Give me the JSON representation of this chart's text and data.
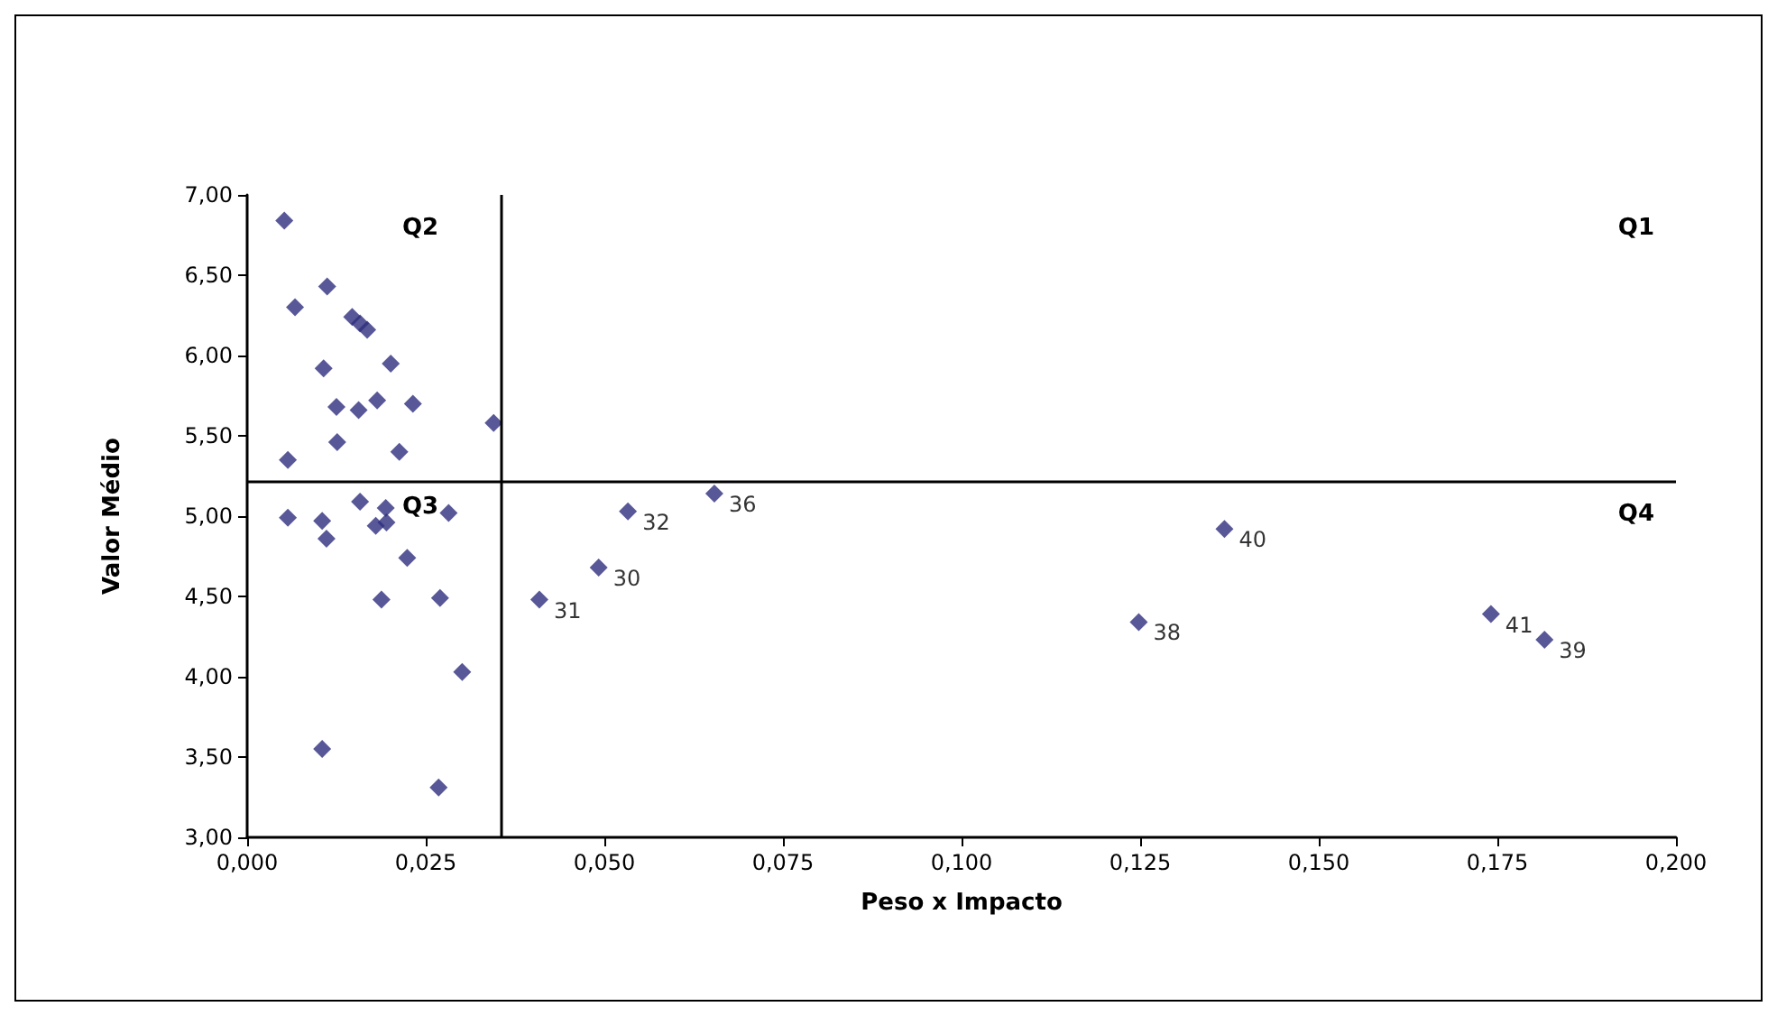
{
  "chart_data": {
    "type": "scatter",
    "xlabel": "Peso x Impacto",
    "ylabel": "Valor Médio",
    "color": "#2e2e7e",
    "marker": "diamond",
    "grid": false,
    "x": [
      0.0052,
      0.0067,
      0.0112,
      0.0147,
      0.0158,
      0.0168,
      0.0107,
      0.0201,
      0.0125,
      0.0156,
      0.0182,
      0.0232,
      0.0345,
      0.0126,
      0.0213,
      0.0057,
      0.0057,
      0.0105,
      0.0111,
      0.0158,
      0.0194,
      0.018,
      0.0195,
      0.0282,
      0.0224,
      0.0188,
      0.027,
      0.0301,
      0.0105,
      0.0268,
      0.0409,
      0.0492,
      0.0533,
      0.0654,
      0.1368,
      0.1248,
      0.1741,
      0.1816
    ],
    "values": [
      6.84,
      6.3,
      6.43,
      6.24,
      6.2,
      6.16,
      5.92,
      5.95,
      5.68,
      5.66,
      5.72,
      5.7,
      5.58,
      5.46,
      5.4,
      5.35,
      4.99,
      4.97,
      4.86,
      5.09,
      5.05,
      4.94,
      4.96,
      5.02,
      4.74,
      4.48,
      4.49,
      4.03,
      3.55,
      3.31,
      4.48,
      4.68,
      5.03,
      5.14,
      4.92,
      4.34,
      4.39,
      4.23
    ],
    "xlim": [
      0,
      0.2
    ],
    "xticks": [
      {
        "value": 0,
        "label": "0,000"
      },
      {
        "value": 0.025,
        "label": "0,025"
      },
      {
        "value": 0.05,
        "label": "0,050"
      },
      {
        "value": 0.075,
        "label": "0,075"
      },
      {
        "value": 0.1,
        "label": "0,100"
      },
      {
        "value": 0.125,
        "label": "0,125"
      },
      {
        "value": 0.15,
        "label": "0,150"
      },
      {
        "value": 0.175,
        "label": "0,175"
      },
      {
        "value": 0.2,
        "label": "0,200"
      }
    ],
    "ylim": [
      3,
      7
    ],
    "yticks": [
      {
        "value": 3,
        "label": "3,00"
      },
      {
        "value": 3.5,
        "label": "3,50"
      },
      {
        "value": 4,
        "label": "4,00"
      },
      {
        "value": 4.5,
        "label": "4,50"
      },
      {
        "value": 5,
        "label": "5,00"
      },
      {
        "value": 5.5,
        "label": "5,50"
      },
      {
        "value": 6,
        "label": "6,00"
      },
      {
        "value": 6.5,
        "label": "6,50"
      },
      {
        "value": 7,
        "label": "7,00"
      }
    ],
    "ref_lines": [
      {
        "axis": "x",
        "value": 0.0356,
        "color": "#000000",
        "line_style": "solid"
      },
      {
        "axis": "y",
        "value": 5.22,
        "color": "#000000",
        "line_style": "solid"
      }
    ],
    "annotations": [
      "Q1",
      "Q2",
      "Q3",
      "Q4",
      {
        "text": "31",
        "x": 0.0409,
        "y": 4.48
      },
      {
        "text": "30",
        "x": 0.0492,
        "y": 4.68
      },
      {
        "text": "32",
        "x": 0.0533,
        "y": 5.03
      },
      {
        "text": "36",
        "x": 0.0654,
        "y": 5.14
      },
      {
        "text": "40",
        "x": 0.1368,
        "y": 4.92
      },
      {
        "text": "38",
        "x": 0.1248,
        "y": 4.34
      },
      {
        "text": "41",
        "x": 0.1741,
        "y": 4.39
      },
      {
        "text": "39",
        "x": 0.1816,
        "y": 4.23
      }
    ]
  }
}
